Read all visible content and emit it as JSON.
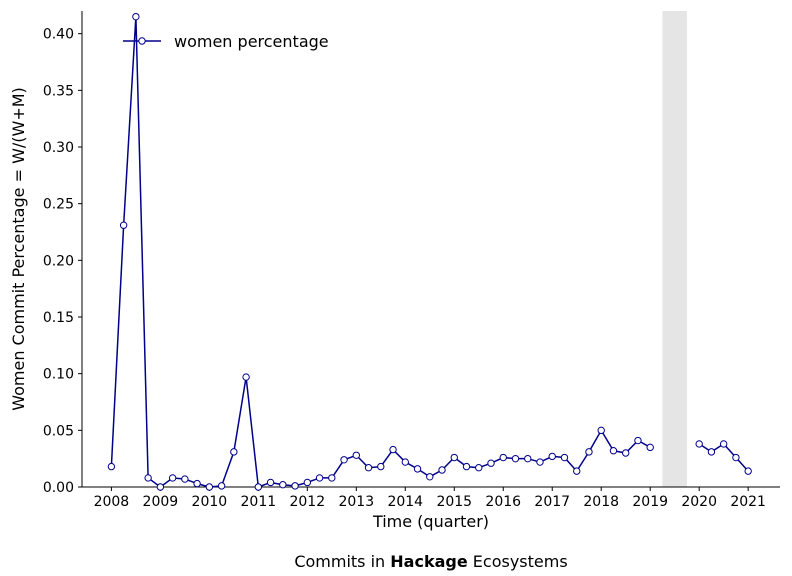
{
  "chart_data": {
    "type": "line",
    "xlabel": "Time (quarter)",
    "ylabel": "Women Commit Percentage = W/(W+M)",
    "caption": {
      "prefix": "Commits in ",
      "bold": "Hackage",
      "suffix": " Ecosystems"
    },
    "xlim": [
      2007.4,
      2021.65
    ],
    "ylim": [
      0,
      0.42
    ],
    "x_ticks": [
      2008,
      2009,
      2010,
      2011,
      2012,
      2013,
      2014,
      2015,
      2016,
      2017,
      2018,
      2019,
      2020,
      2021
    ],
    "y_ticks": [
      0.0,
      0.05,
      0.1,
      0.15,
      0.2,
      0.25,
      0.3,
      0.35,
      0.4
    ],
    "y_tick_labels": [
      "0.00",
      "0.05",
      "0.10",
      "0.15",
      "0.20",
      "0.25",
      "0.30",
      "0.35",
      "0.40"
    ],
    "legend": {
      "position": "top-left"
    },
    "highlight_band": {
      "x_start": 2019.25,
      "x_end": 2019.75,
      "color": "#e5e5e5"
    },
    "grid": false,
    "series": [
      {
        "name": "women percentage",
        "color": "#00008b",
        "segments": [
          [
            [
              2008.0,
              0.018
            ],
            [
              2008.25,
              0.231
            ],
            [
              2008.5,
              0.415
            ],
            [
              2008.75,
              0.008
            ],
            [
              2009.0,
              0.0
            ],
            [
              2009.25,
              0.008
            ],
            [
              2009.5,
              0.007
            ],
            [
              2009.75,
              0.003
            ],
            [
              2010.0,
              0.0
            ],
            [
              2010.25,
              0.001
            ],
            [
              2010.5,
              0.031
            ],
            [
              2010.75,
              0.097
            ],
            [
              2011.0,
              0.0
            ],
            [
              2011.25,
              0.004
            ],
            [
              2011.5,
              0.002
            ],
            [
              2011.75,
              0.001
            ],
            [
              2012.0,
              0.004
            ],
            [
              2012.25,
              0.008
            ],
            [
              2012.5,
              0.008
            ],
            [
              2012.75,
              0.024
            ],
            [
              2013.0,
              0.028
            ],
            [
              2013.25,
              0.017
            ],
            [
              2013.5,
              0.018
            ],
            [
              2013.75,
              0.033
            ],
            [
              2014.0,
              0.022
            ],
            [
              2014.25,
              0.016
            ],
            [
              2014.5,
              0.009
            ],
            [
              2014.75,
              0.015
            ],
            [
              2015.0,
              0.026
            ],
            [
              2015.25,
              0.018
            ],
            [
              2015.5,
              0.017
            ],
            [
              2015.75,
              0.021
            ],
            [
              2016.0,
              0.026
            ],
            [
              2016.25,
              0.025
            ],
            [
              2016.5,
              0.025
            ],
            [
              2016.75,
              0.022
            ],
            [
              2017.0,
              0.027
            ],
            [
              2017.25,
              0.026
            ],
            [
              2017.5,
              0.014
            ],
            [
              2017.75,
              0.031
            ],
            [
              2018.0,
              0.05
            ],
            [
              2018.25,
              0.032
            ],
            [
              2018.5,
              0.03
            ],
            [
              2018.75,
              0.041
            ],
            [
              2019.0,
              0.035
            ]
          ],
          [
            [
              2020.0,
              0.038
            ],
            [
              2020.25,
              0.031
            ],
            [
              2020.5,
              0.038
            ],
            [
              2020.75,
              0.026
            ],
            [
              2021.0,
              0.014
            ]
          ]
        ]
      }
    ]
  }
}
